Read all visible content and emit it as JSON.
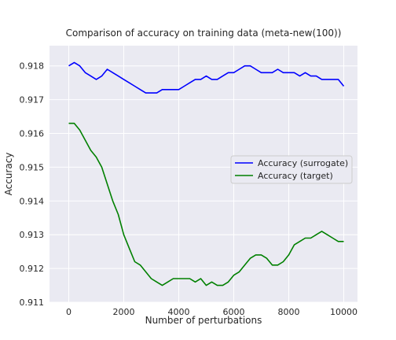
{
  "chart_data": {
    "type": "line",
    "title": "Comparison of accuracy on training data (meta-new(100))",
    "xlabel": "Number of perturbations",
    "ylabel": "Accuracy",
    "xlim": [
      -700,
      10500
    ],
    "ylim": [
      0.911,
      0.9186
    ],
    "xticks": [
      0,
      2000,
      4000,
      6000,
      8000,
      10000
    ],
    "xtick_labels": [
      "0",
      "2000",
      "4000",
      "6000",
      "8000",
      "10000"
    ],
    "yticks": [
      0.911,
      0.912,
      0.913,
      0.914,
      0.915,
      0.916,
      0.917,
      0.918
    ],
    "ytick_labels": [
      "0.911",
      "0.912",
      "0.913",
      "0.914",
      "0.915",
      "0.916",
      "0.917",
      "0.918"
    ],
    "grid": true,
    "legend_position": "center-right",
    "background": "#eaeaf2",
    "series": [
      {
        "name": "Accuracy (surrogate)",
        "color": "#0000ff",
        "x": [
          0,
          200,
          400,
          600,
          800,
          1000,
          1200,
          1400,
          1600,
          1800,
          2000,
          2200,
          2400,
          2600,
          2800,
          3000,
          3200,
          3400,
          3600,
          3800,
          4000,
          4200,
          4400,
          4600,
          4800,
          5000,
          5200,
          5400,
          5600,
          5800,
          6000,
          6200,
          6400,
          6600,
          6800,
          7000,
          7200,
          7400,
          7600,
          7800,
          8000,
          8200,
          8400,
          8600,
          8800,
          9000,
          9200,
          9400,
          9600,
          9800,
          10000
        ],
        "values": [
          0.918,
          0.9181,
          0.918,
          0.9178,
          0.9177,
          0.9176,
          0.9177,
          0.9179,
          0.9178,
          0.9177,
          0.9176,
          0.9175,
          0.9174,
          0.9173,
          0.9172,
          0.9172,
          0.9172,
          0.9173,
          0.9173,
          0.9173,
          0.9173,
          0.9174,
          0.9175,
          0.9176,
          0.9176,
          0.9177,
          0.9176,
          0.9176,
          0.9177,
          0.9178,
          0.9178,
          0.9179,
          0.918,
          0.918,
          0.9179,
          0.9178,
          0.9178,
          0.9178,
          0.9179,
          0.9178,
          0.9178,
          0.9178,
          0.9177,
          0.9178,
          0.9177,
          0.9177,
          0.9176,
          0.9176,
          0.9176,
          0.9176,
          0.9174
        ]
      },
      {
        "name": "Accuracy (target)",
        "color": "#008000",
        "x": [
          0,
          200,
          400,
          600,
          800,
          1000,
          1200,
          1400,
          1600,
          1800,
          2000,
          2200,
          2400,
          2600,
          2800,
          3000,
          3200,
          3400,
          3600,
          3800,
          4000,
          4200,
          4400,
          4600,
          4800,
          5000,
          5200,
          5400,
          5600,
          5800,
          6000,
          6200,
          6400,
          6600,
          6800,
          7000,
          7200,
          7400,
          7600,
          7800,
          8000,
          8200,
          8400,
          8600,
          8800,
          9000,
          9200,
          9400,
          9600,
          9800,
          10000
        ],
        "values": [
          0.9163,
          0.9163,
          0.9161,
          0.9158,
          0.9155,
          0.9153,
          0.915,
          0.9145,
          0.914,
          0.9136,
          0.913,
          0.9126,
          0.9122,
          0.9121,
          0.9119,
          0.9117,
          0.9116,
          0.9115,
          0.9116,
          0.9117,
          0.9117,
          0.9117,
          0.9117,
          0.9116,
          0.9117,
          0.9115,
          0.9116,
          0.9115,
          0.9115,
          0.9116,
          0.9118,
          0.9119,
          0.9121,
          0.9123,
          0.9124,
          0.9124,
          0.9123,
          0.9121,
          0.9121,
          0.9122,
          0.9124,
          0.9127,
          0.9128,
          0.9129,
          0.9129,
          0.913,
          0.9131,
          0.913,
          0.9129,
          0.9128,
          0.9128
        ]
      }
    ]
  }
}
